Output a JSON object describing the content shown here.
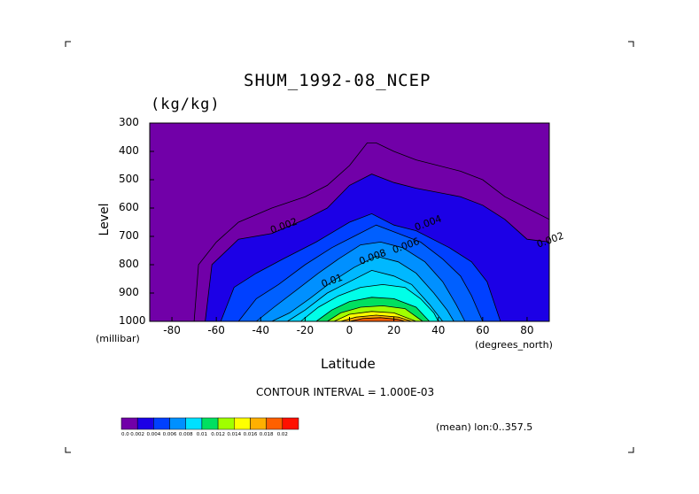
{
  "chart_data": {
    "type": "contour",
    "title": "SHUM_1992-08_NCEP",
    "units": "(kg/kg)",
    "xlabel": "Latitude",
    "x_unit_label": "(degrees_north)",
    "ylabel": "Level",
    "y_unit_label": "(millibar)",
    "xlim": [
      -90,
      90
    ],
    "ylim": [
      1000,
      300
    ],
    "x_ticks": [
      "-80",
      "-60",
      "-40",
      "-20",
      "0",
      "20",
      "40",
      "60",
      "80"
    ],
    "y_ticks": [
      "300",
      "400",
      "500",
      "600",
      "700",
      "800",
      "900",
      "1000"
    ],
    "contour_interval_text": "CONTOUR INTERVAL = 1.000E-03",
    "mean_text": "(mean) lon:0..357.5",
    "contour_labels": [
      "0.002",
      "0.004",
      "0.006",
      "0.008",
      "0.01",
      "0.002"
    ],
    "colorbar": {
      "colors": [
        "#7100a8",
        "#1c00e6",
        "#0040ff",
        "#0090ff",
        "#00e0ff",
        "#00e060",
        "#a0ff00",
        "#ffff00",
        "#ffb000",
        "#ff6000",
        "#ff1000"
      ],
      "labels": [
        "0.0",
        "0.002",
        "0.004",
        "0.006",
        "0.008",
        "0.01",
        "0.012",
        "0.014",
        "0.016",
        "0.018",
        "0.02"
      ]
    },
    "levels": [
      {
        "value": 0.002,
        "color": "#1c00e6",
        "bounds": [
          [
            -65,
            1000
          ],
          [
            -62,
            800
          ],
          [
            -50,
            710
          ],
          [
            -35,
            690
          ],
          [
            -20,
            640
          ],
          [
            -10,
            600
          ],
          [
            0,
            520
          ],
          [
            10,
            480
          ],
          [
            20,
            510
          ],
          [
            30,
            530
          ],
          [
            50,
            560
          ],
          [
            60,
            590
          ],
          [
            70,
            640
          ],
          [
            80,
            710
          ],
          [
            90,
            720
          ],
          [
            90,
            1000
          ]
        ]
      },
      {
        "value": 0.003,
        "color": "#0040ff",
        "bounds": [
          [
            -58,
            1000
          ],
          [
            -52,
            880
          ],
          [
            -42,
            830
          ],
          [
            -30,
            780
          ],
          [
            -15,
            720
          ],
          [
            0,
            650
          ],
          [
            10,
            620
          ],
          [
            20,
            660
          ],
          [
            30,
            680
          ],
          [
            45,
            740
          ],
          [
            55,
            790
          ],
          [
            62,
            860
          ],
          [
            68,
            1000
          ]
        ]
      },
      {
        "value": 0.004,
        "color": "#0060ff",
        "bounds": [
          [
            -50,
            1000
          ],
          [
            -42,
            920
          ],
          [
            -32,
            870
          ],
          [
            -20,
            800
          ],
          [
            -8,
            740
          ],
          [
            2,
            700
          ],
          [
            12,
            660
          ],
          [
            22,
            690
          ],
          [
            32,
            720
          ],
          [
            42,
            780
          ],
          [
            50,
            840
          ],
          [
            55,
            910
          ],
          [
            60,
            1000
          ]
        ]
      },
      {
        "value": 0.005,
        "color": "#0090ff",
        "bounds": [
          [
            -42,
            1000
          ],
          [
            -34,
            950
          ],
          [
            -24,
            890
          ],
          [
            -14,
            830
          ],
          [
            -5,
            780
          ],
          [
            5,
            730
          ],
          [
            14,
            720
          ],
          [
            24,
            740
          ],
          [
            34,
            790
          ],
          [
            42,
            860
          ],
          [
            48,
            940
          ],
          [
            52,
            1000
          ]
        ]
      },
      {
        "value": 0.006,
        "color": "#00b8ff",
        "bounds": [
          [
            -35,
            1000
          ],
          [
            -27,
            970
          ],
          [
            -18,
            920
          ],
          [
            -8,
            860
          ],
          [
            2,
            810
          ],
          [
            12,
            770
          ],
          [
            22,
            790
          ],
          [
            30,
            830
          ],
          [
            38,
            900
          ],
          [
            44,
            960
          ],
          [
            47,
            1000
          ]
        ]
      },
      {
        "value": 0.007,
        "color": "#00d8ff",
        "bounds": [
          [
            -28,
            1000
          ],
          [
            -20,
            960
          ],
          [
            -10,
            900
          ],
          [
            0,
            860
          ],
          [
            10,
            820
          ],
          [
            20,
            840
          ],
          [
            28,
            870
          ],
          [
            36,
            940
          ],
          [
            42,
            1000
          ]
        ]
      },
      {
        "value": 0.008,
        "color": "#00ffe8",
        "bounds": [
          [
            -22,
            1000
          ],
          [
            -14,
            950
          ],
          [
            -5,
            910
          ],
          [
            5,
            880
          ],
          [
            15,
            870
          ],
          [
            25,
            880
          ],
          [
            32,
            920
          ],
          [
            38,
            970
          ],
          [
            40,
            1000
          ]
        ]
      },
      {
        "value": 0.01,
        "color": "#00e060",
        "bounds": [
          [
            -15,
            1000
          ],
          [
            -8,
            960
          ],
          [
            0,
            930
          ],
          [
            10,
            915
          ],
          [
            20,
            920
          ],
          [
            30,
            950
          ],
          [
            36,
            1000
          ]
        ]
      },
      {
        "value": 0.012,
        "color": "#a0ff00",
        "bounds": [
          [
            -10,
            1000
          ],
          [
            -4,
            970
          ],
          [
            5,
            950
          ],
          [
            15,
            945
          ],
          [
            25,
            955
          ],
          [
            33,
            1000
          ]
        ]
      },
      {
        "value": 0.014,
        "color": "#ffff00",
        "bounds": [
          [
            -7,
            1000
          ],
          [
            0,
            975
          ],
          [
            10,
            965
          ],
          [
            20,
            970
          ],
          [
            30,
            1000
          ]
        ]
      },
      {
        "value": 0.016,
        "color": "#ffb000",
        "bounds": [
          [
            -4,
            1000
          ],
          [
            3,
            985
          ],
          [
            12,
            978
          ],
          [
            22,
            985
          ],
          [
            28,
            1000
          ]
        ]
      },
      {
        "value": 0.018,
        "color": "#ff6000",
        "bounds": [
          [
            0,
            1000
          ],
          [
            6,
            990
          ],
          [
            14,
            987
          ],
          [
            22,
            993
          ],
          [
            25,
            1000
          ]
        ]
      }
    ],
    "outline_0p001": [
      [
        -70,
        1000
      ],
      [
        -68,
        800
      ],
      [
        -60,
        720
      ],
      [
        -50,
        650
      ],
      [
        -35,
        600
      ],
      [
        -20,
        560
      ],
      [
        -10,
        520
      ],
      [
        0,
        450
      ],
      [
        8,
        370
      ],
      [
        12,
        370
      ],
      [
        20,
        400
      ],
      [
        30,
        430
      ],
      [
        50,
        470
      ],
      [
        60,
        500
      ],
      [
        70,
        560
      ],
      [
        80,
        600
      ],
      [
        90,
        640
      ]
    ]
  }
}
